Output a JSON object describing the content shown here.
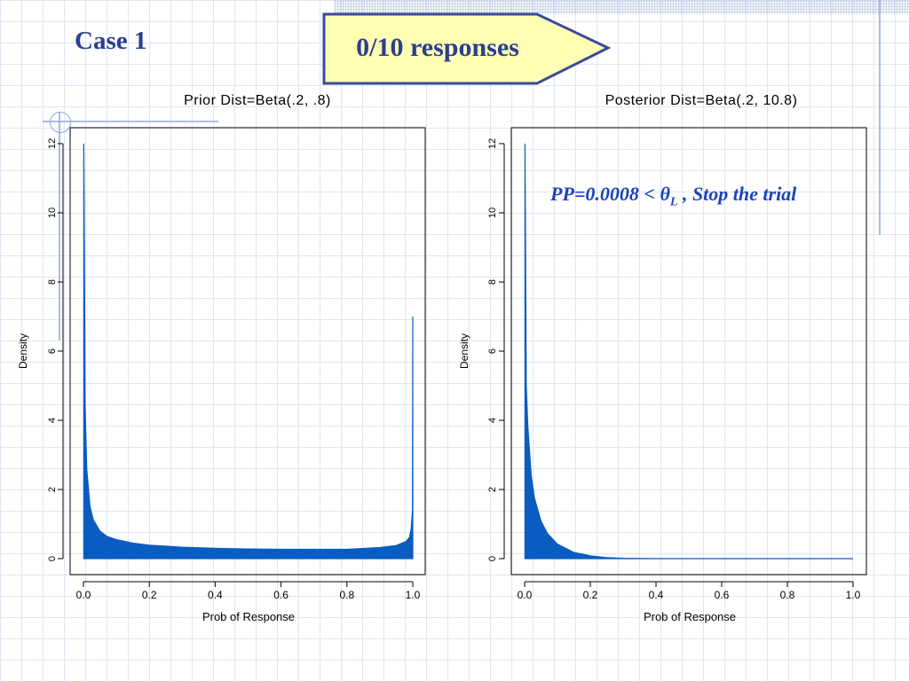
{
  "slide": {
    "title": "Case 1",
    "callout": "0/10 responses"
  },
  "annotation": {
    "text": "PP=0.0008 < θ",
    "subscript": "L",
    "suffix": " ,  Stop the trial"
  },
  "colors": {
    "fill": "#0a5cc0",
    "title": "#2a3f8f",
    "callout_fill": "#ffffb4",
    "annotation": "#1a44b8",
    "grid": "#dfe6f3"
  },
  "chart_data": [
    {
      "type": "area",
      "title": "Prior Dist=Beta(.2, .8)",
      "xlabel": "Prob of Response",
      "ylabel": "Density",
      "xlim": [
        0,
        1
      ],
      "ylim": [
        0,
        12
      ],
      "xticks": [
        "0.0",
        "0.2",
        "0.4",
        "0.6",
        "0.8",
        "1.0"
      ],
      "yticks": [
        "0",
        "2",
        "4",
        "6",
        "8",
        "10",
        "12"
      ],
      "series": [
        {
          "x": [
            0.001,
            0.002,
            0.005,
            0.01,
            0.02,
            0.03,
            0.05,
            0.07,
            0.1,
            0.15,
            0.2,
            0.3,
            0.4,
            0.5,
            0.6,
            0.7,
            0.8,
            0.9,
            0.95,
            0.98,
            0.99,
            0.995,
            0.999,
            1.0
          ],
          "y": [
            12,
            10.5,
            4.5,
            2.6,
            1.5,
            1.12,
            0.8,
            0.65,
            0.55,
            0.45,
            0.39,
            0.33,
            0.3,
            0.28,
            0.27,
            0.27,
            0.27,
            0.32,
            0.38,
            0.5,
            0.62,
            0.85,
            1.4,
            7.0
          ]
        }
      ]
    },
    {
      "type": "area",
      "title": "Posterior Dist=Beta(.2, 10.8)",
      "xlabel": "Prob of Response",
      "ylabel": "Density",
      "xlim": [
        0,
        1
      ],
      "ylim": [
        0,
        12
      ],
      "xticks": [
        "0.0",
        "0.2",
        "0.4",
        "0.6",
        "0.8",
        "1.0"
      ],
      "yticks": [
        "0",
        "2",
        "4",
        "6",
        "8",
        "10",
        "12"
      ],
      "series": [
        {
          "x": [
            0.001,
            0.002,
            0.005,
            0.01,
            0.02,
            0.03,
            0.05,
            0.07,
            0.1,
            0.15,
            0.2,
            0.25,
            0.3,
            0.4,
            0.5,
            0.7,
            1.0
          ],
          "y": [
            12,
            10.5,
            5.0,
            3.8,
            2.4,
            1.75,
            1.08,
            0.72,
            0.42,
            0.18,
            0.08,
            0.03,
            0.01,
            0.002,
            0,
            0,
            0
          ]
        }
      ]
    }
  ]
}
